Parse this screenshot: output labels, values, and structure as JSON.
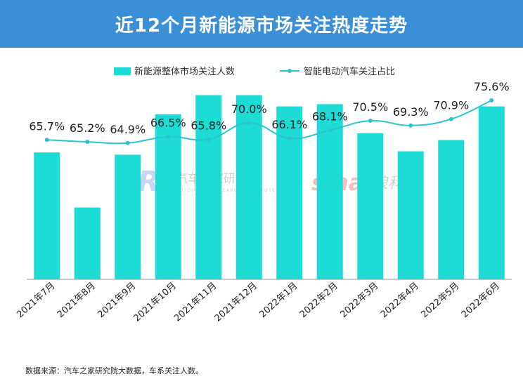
{
  "title": "近12个月新能源市场关注热度走势",
  "source": "数据来源：汽车之家研究院大数据，车系关注人数。",
  "watermarks": {
    "autohome_logo": "AR",
    "autohome_cn": "汽车之家研究院",
    "autohome_en": "AUTOHOME RESEARCH INSTITUTE",
    "sina_logo": "sina",
    "sina_cn": "新浪科技"
  },
  "colors": {
    "bar": "#1ddbd5",
    "line": "#2cc5cc",
    "title_bg": "#3a8fd6"
  },
  "chart_data": {
    "type": "bar",
    "categories": [
      "2021年7月",
      "2021年8月",
      "2021年9月",
      "2021年10月",
      "2021年11月",
      "2021年12月",
      "2022年1月",
      "2022年2月",
      "2022年3月",
      "2022年4月",
      "2022年5月",
      "2022年6月"
    ],
    "series": [
      {
        "name": "新能源整体市场关注人数",
        "type": "bar",
        "values": [
          113,
          64,
          111,
          147,
          164,
          164,
          154,
          156,
          130,
          114,
          124,
          154
        ]
      },
      {
        "name": "智能电动汽车关注占比",
        "type": "line",
        "values": [
          65.7,
          65.2,
          64.9,
          66.5,
          65.8,
          70.0,
          66.1,
          68.1,
          70.5,
          69.3,
          70.9,
          75.6
        ],
        "labels": [
          "65.7%",
          "65.2%",
          "64.9%",
          "66.5%",
          "65.8%",
          "70.0%",
          "66.1%",
          "68.1%",
          "70.5%",
          "69.3%",
          "70.9%",
          "75.6%"
        ]
      }
    ],
    "bar_ylim": [
      0,
      175
    ],
    "line_ylim": [
      58,
      80
    ],
    "legend": "top-center",
    "grid": false
  }
}
